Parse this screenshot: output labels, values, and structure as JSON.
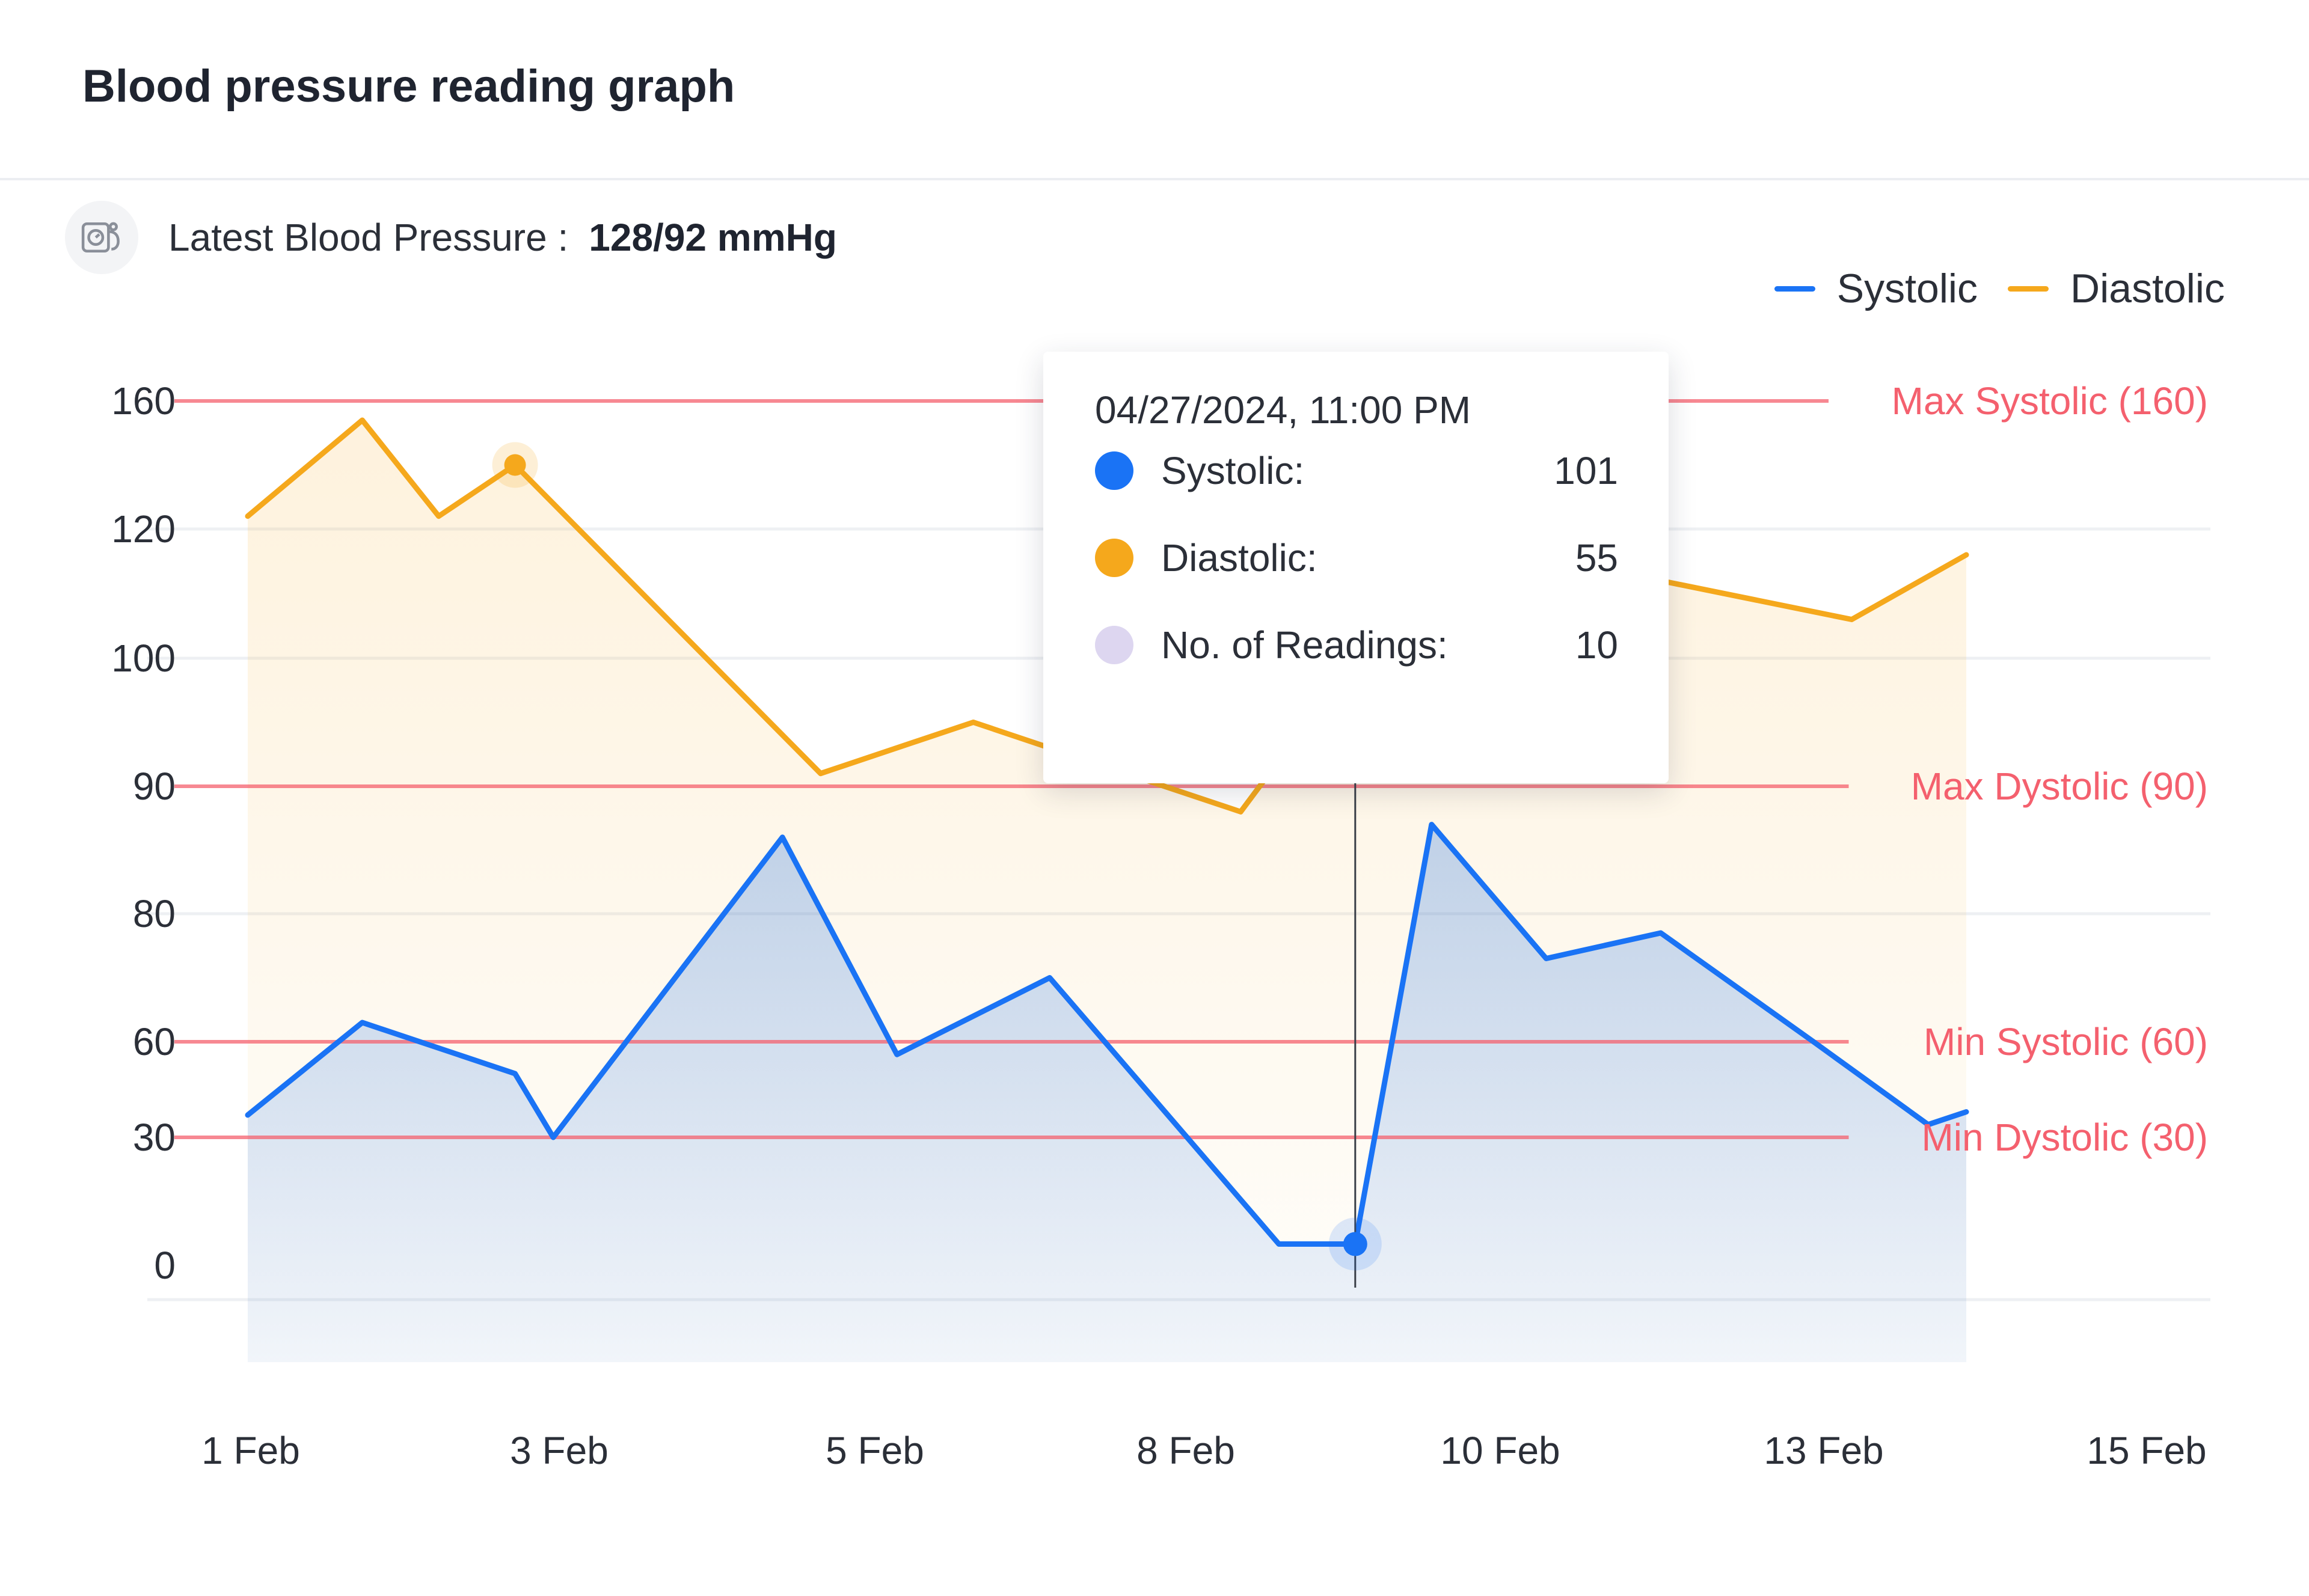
{
  "header": {
    "title": "Blood pressure reading graph"
  },
  "latest": {
    "label": "Latest Blood Pressure :",
    "value": "128/92 mmHg",
    "icon": "blood-pressure-monitor-icon"
  },
  "legend": [
    {
      "name": "Systolic",
      "color": "#1a73f5"
    },
    {
      "name": "Diastolic",
      "color": "#f5a81c"
    }
  ],
  "tooltip": {
    "date": "04/27/2024, 11:00 PM",
    "rows": [
      {
        "label": "Systolic:",
        "value": "101",
        "color": "#1a73f5"
      },
      {
        "label": "Diastolic:",
        "value": "55",
        "color": "#f5a81c"
      },
      {
        "label": "No. of Readings:",
        "value": "10",
        "color": "#ddd6f0"
      }
    ]
  },
  "chart_data": {
    "type": "area",
    "y_ticks": [
      0,
      30,
      60,
      80,
      90,
      100,
      120,
      160
    ],
    "x_ticks": [
      "1 Feb",
      "3  Feb",
      "5  Feb",
      "8 Feb",
      "10 Feb",
      "13 Feb",
      "15 Feb"
    ],
    "grid": true,
    "legend_position": "top-right",
    "series": [
      {
        "name": "Systolic",
        "color": "#1a73f5",
        "points": [
          {
            "x": "1 Feb",
            "y": 37
          },
          {
            "x": "1.75 Feb",
            "y": 63
          },
          {
            "x": "2.75 Feb",
            "y": 50
          },
          {
            "x": "3 Feb",
            "y": 30
          },
          {
            "x": "4.5 Feb",
            "y": 86
          },
          {
            "x": "5.25 Feb",
            "y": 56
          },
          {
            "x": "6.25 Feb",
            "y": 70
          },
          {
            "x": "7.75 Feb",
            "y": 5
          },
          {
            "x": "8.25 Feb",
            "y": 5
          },
          {
            "x": "8.75 Feb",
            "y": 87
          },
          {
            "x": "9.5 Feb",
            "y": 73
          },
          {
            "x": "10.25 Feb",
            "y": 77
          },
          {
            "x": "11.25 Feb",
            "y": 60
          },
          {
            "x": "12 Feb",
            "y": 34
          },
          {
            "x": "12.25 Feb",
            "y": 38
          }
        ]
      },
      {
        "name": "Diastolic",
        "color": "#f5a81c",
        "points": [
          {
            "x": "1 Feb",
            "y": 124
          },
          {
            "x": "1.75 Feb",
            "y": 154
          },
          {
            "x": "2.25 Feb",
            "y": 124
          },
          {
            "x": "2.75 Feb",
            "y": 140
          },
          {
            "x": "4.75 Feb",
            "y": 91
          },
          {
            "x": "5.75 Feb",
            "y": 95
          },
          {
            "x": "6.5 Feb",
            "y": 92
          },
          {
            "x": "7.5 Feb",
            "y": 88
          },
          {
            "x": "8.25 Feb",
            "y": 100
          },
          {
            "x": "9 Feb",
            "y": 113
          },
          {
            "x": "10.25 Feb",
            "y": 112
          },
          {
            "x": "11.5 Feb",
            "y": 106
          },
          {
            "x": "12.25 Feb",
            "y": 116
          }
        ]
      }
    ],
    "reference_lines": [
      {
        "label": "Max Systolic (160)",
        "value": 160
      },
      {
        "label": "Max Dystolic (90)",
        "value": 90
      },
      {
        "label": "Min Systolic (60)",
        "value": 60
      },
      {
        "label": "Min Dystolic (30)",
        "value": 30
      }
    ],
    "reference_color": "#f4606e",
    "highlight": {
      "series": "Systolic",
      "x": "8.25 Feb",
      "y": 5
    }
  }
}
